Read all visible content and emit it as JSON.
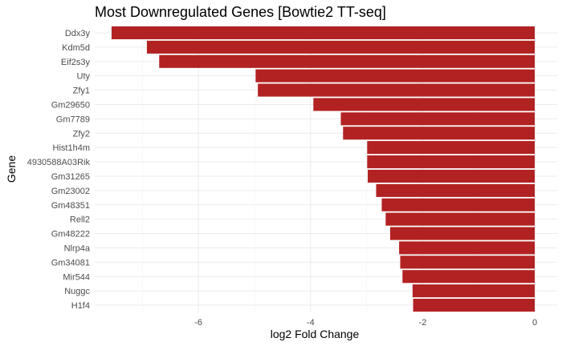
{
  "chart_data": {
    "type": "bar",
    "orientation": "horizontal",
    "title": "Most Downregulated Genes [Bowtie2 TT-seq]",
    "xlabel": "log2 Fold Change",
    "ylabel": "Gene",
    "xlim": [
      -7.85,
      0.4
    ],
    "xticks": [
      -6,
      -4,
      -2,
      0
    ],
    "grid": true,
    "legend": "none",
    "bar_color": "#b22222",
    "categories": [
      "Ddx3y",
      "Kdm5d",
      "Eif2s3y",
      "Uty",
      "Zfy1",
      "Gm29650",
      "Gm7789",
      "Zfy2",
      "Hist1h4m",
      "4930588A03Rik",
      "Gm31265",
      "Gm23002",
      "Gm48351",
      "Rell2",
      "Gm48222",
      "Nlrp4a",
      "Gm34081",
      "Mir544",
      "Nuggc",
      "H1f4"
    ],
    "values": [
      -7.55,
      -6.92,
      -6.7,
      -4.98,
      -4.94,
      -3.95,
      -3.46,
      -3.42,
      -2.99,
      -2.99,
      -2.98,
      -2.83,
      -2.73,
      -2.66,
      -2.58,
      -2.42,
      -2.4,
      -2.36,
      -2.18,
      -2.17
    ]
  }
}
